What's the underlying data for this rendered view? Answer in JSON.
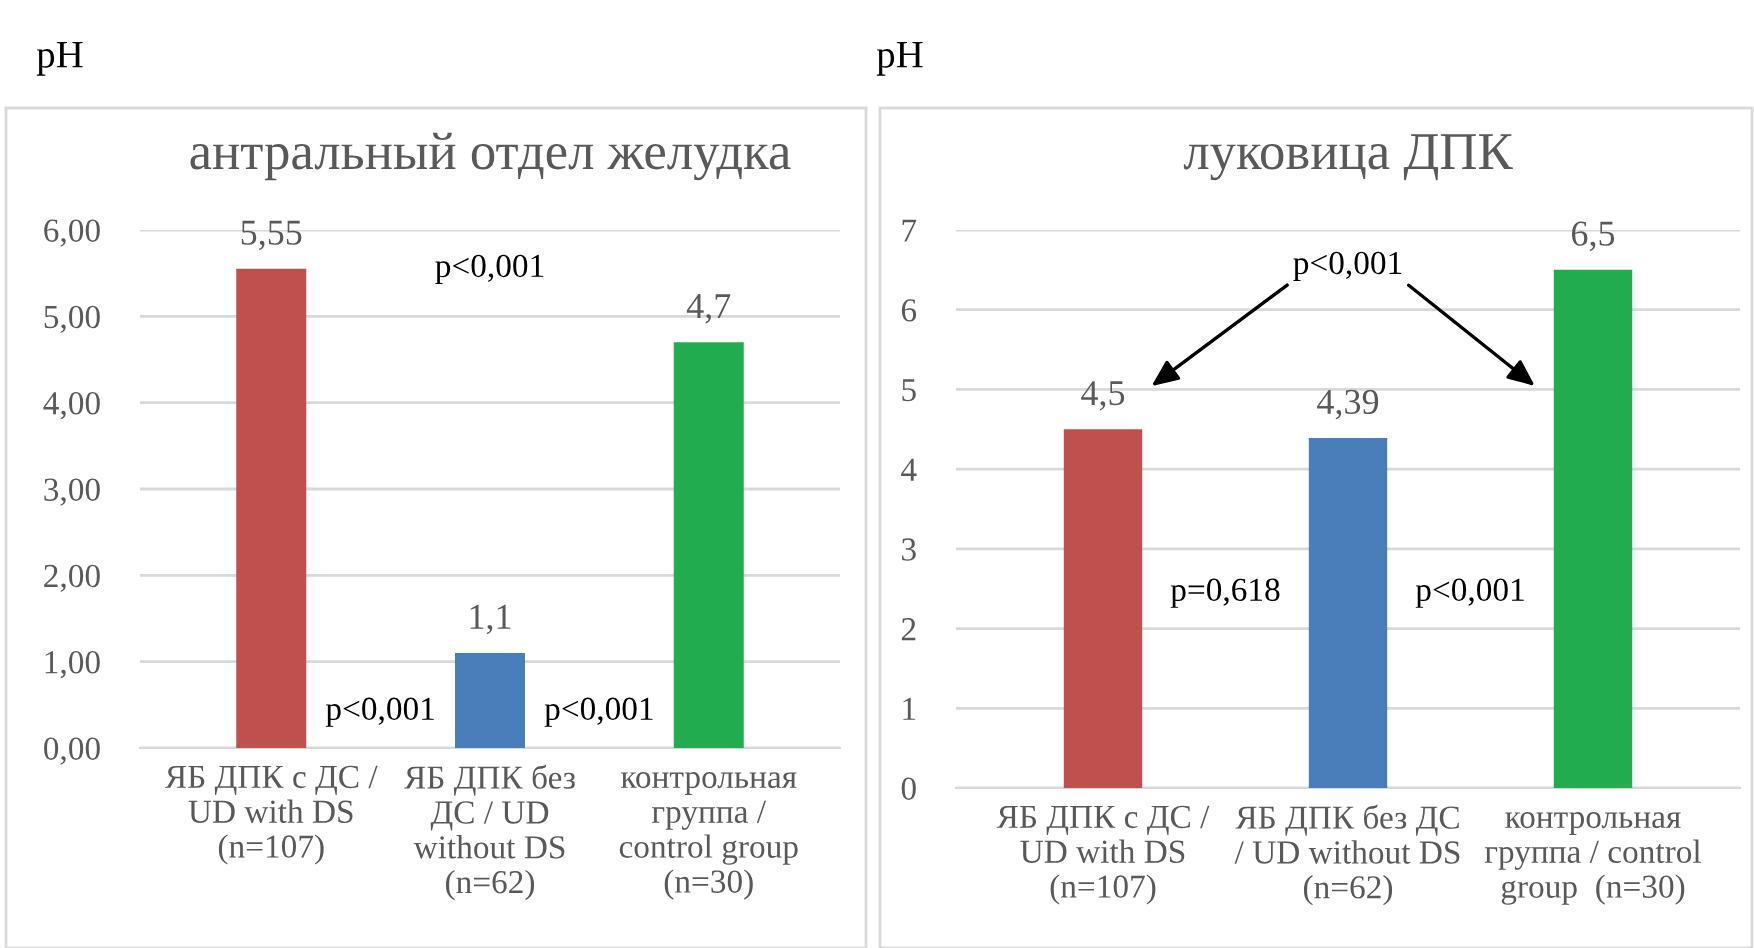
{
  "chart_data": [
    {
      "type": "bar",
      "title": "антральный отдел желудка",
      "ylabel": "pH",
      "categories": [
        "ЯБ ДПК с ДС /\nUD with DS\n(n=107)",
        "ЯБ ДПК без\nДС / UD\nwithout DS\n(n=62)",
        "контрольная\nгруппа /\ncontrol group\n(n=30)"
      ],
      "values": [
        5.55,
        1.1,
        4.7
      ],
      "colors": [
        "#c0504d",
        "#4a7ebb",
        "#21ad4f"
      ],
      "value_labels": [
        "5,55",
        "1,1",
        "4,7"
      ],
      "ylim": [
        0,
        6
      ],
      "yticks": [
        {
          "value": 0,
          "label": "0,00"
        },
        {
          "value": 1,
          "label": "1,00"
        },
        {
          "value": 2,
          "label": "2,00"
        },
        {
          "value": 3,
          "label": "3,00"
        },
        {
          "value": 4,
          "label": "4,00"
        },
        {
          "value": 5,
          "label": "5,00"
        },
        {
          "value": 6,
          "label": "6,00"
        }
      ],
      "grid": "y",
      "legend": false,
      "annotations": [
        "p<0,001",
        "p<0,001",
        "p<0,001"
      ]
    },
    {
      "type": "bar",
      "title": "луковица ДПК",
      "ylabel": "pH",
      "categories": [
        "ЯБ ДПК с ДС /\nUD with DS\n(n=107)",
        "ЯБ ДПК без ДС\n/ UD without DS\n(n=62)",
        "контрольная\nгруппа / control\ngroup  (n=30)"
      ],
      "values": [
        4.5,
        4.39,
        6.5
      ],
      "colors": [
        "#c0504d",
        "#4a7ebb",
        "#21ad4f"
      ],
      "value_labels": [
        "4,5",
        "4,39",
        "6,5"
      ],
      "ylim": [
        0,
        7
      ],
      "yticks": [
        0,
        1,
        2,
        3,
        4,
        5,
        6,
        7
      ],
      "grid": "y",
      "legend": false,
      "annotations": [
        "p<0,001",
        "p=0,618",
        "p<0,001"
      ]
    }
  ]
}
